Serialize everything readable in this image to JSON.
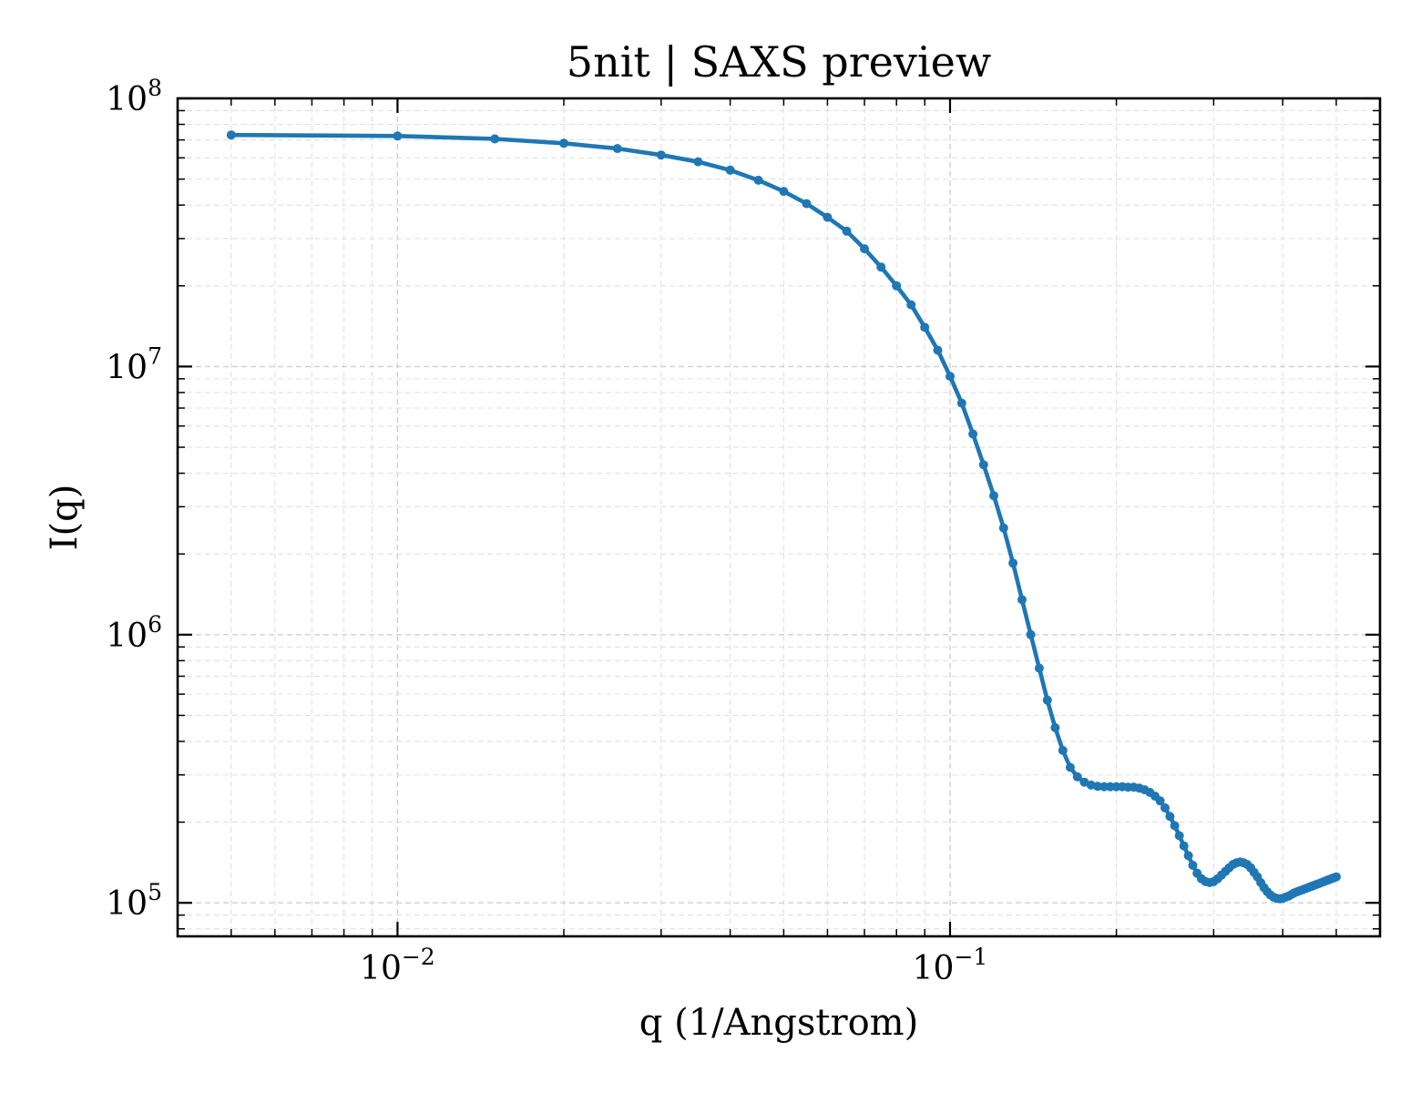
{
  "chart_data": {
    "type": "line",
    "title": "5nit | SAXS preview",
    "xlabel": "q (1/Angstrom)",
    "ylabel": "I(q)",
    "xscale": "log",
    "yscale": "log",
    "xlim": [
      0.004,
      0.6
    ],
    "ylim": [
      75000,
      100000000
    ],
    "grid": true,
    "legend": "none",
    "colors": {
      "series": "#1f77b4"
    },
    "x_ticks": [
      {
        "base": "10",
        "exp": "−2",
        "value": 0.01
      },
      {
        "base": "10",
        "exp": "−1",
        "value": 0.1
      }
    ],
    "y_ticks": [
      {
        "base": "10",
        "exp": "5",
        "value": 100000
      },
      {
        "base": "10",
        "exp": "6",
        "value": 1000000
      },
      {
        "base": "10",
        "exp": "7",
        "value": 10000000
      },
      {
        "base": "10",
        "exp": "8",
        "value": 100000000
      }
    ],
    "series": [
      {
        "name": "",
        "color": "#1f77b4",
        "x": [
          0.005,
          0.01,
          0.015,
          0.02,
          0.025,
          0.03,
          0.035,
          0.04,
          0.045,
          0.05,
          0.055,
          0.06,
          0.065,
          0.07,
          0.075,
          0.08,
          0.085,
          0.09,
          0.095,
          0.1,
          0.105,
          0.11,
          0.115,
          0.12,
          0.125,
          0.13,
          0.135,
          0.14,
          0.145,
          0.15,
          0.155,
          0.16,
          0.165,
          0.17,
          0.175,
          0.18,
          0.185,
          0.19,
          0.195,
          0.2,
          0.205,
          0.21,
          0.215,
          0.22,
          0.225,
          0.23,
          0.235,
          0.24,
          0.245,
          0.25,
          0.255,
          0.26,
          0.265,
          0.27,
          0.275,
          0.28,
          0.285,
          0.29,
          0.295,
          0.3,
          0.305,
          0.31,
          0.315,
          0.32,
          0.325,
          0.33,
          0.335,
          0.34,
          0.345,
          0.35,
          0.355,
          0.36,
          0.365,
          0.37,
          0.375,
          0.38,
          0.385,
          0.39,
          0.395,
          0.4,
          0.405,
          0.41,
          0.415,
          0.42,
          0.425,
          0.43,
          0.435,
          0.44,
          0.445,
          0.45,
          0.455,
          0.46,
          0.465,
          0.47,
          0.475,
          0.48,
          0.485,
          0.49,
          0.495,
          0.5
        ],
        "y": [
          73000000,
          72400000,
          70600000,
          68000000,
          65000000,
          61500000,
          58000000,
          54000000,
          49500000,
          45000000,
          40500000,
          36000000,
          32000000,
          27500000,
          23500000,
          20000000,
          17000000,
          14000000,
          11500000,
          9200000,
          7300000,
          5600000,
          4300000,
          3300000,
          2500000,
          1850000,
          1350000,
          1000000,
          750000,
          570000,
          450000,
          370000,
          320000,
          295000,
          282000,
          275000,
          272000,
          271000,
          271000,
          271000,
          271000,
          270000,
          270000,
          268000,
          264000,
          258000,
          250000,
          240000,
          226000,
          210000,
          194000,
          178000,
          163000,
          150000,
          138000,
          129000,
          123000,
          120000,
          119000,
          120000,
          123000,
          127000,
          131000,
          135000,
          139000,
          141000,
          142000,
          141000,
          139000,
          135000,
          130000,
          125000,
          119000,
          114000,
          110000,
          107000,
          105000,
          104000,
          103500,
          104000,
          105000,
          106000,
          107500,
          109000,
          110000,
          111000,
          112000,
          113000,
          114000,
          115000,
          116000,
          117000,
          118000,
          119000,
          120000,
          121000,
          122000,
          123000,
          124000,
          125000
        ]
      }
    ]
  }
}
